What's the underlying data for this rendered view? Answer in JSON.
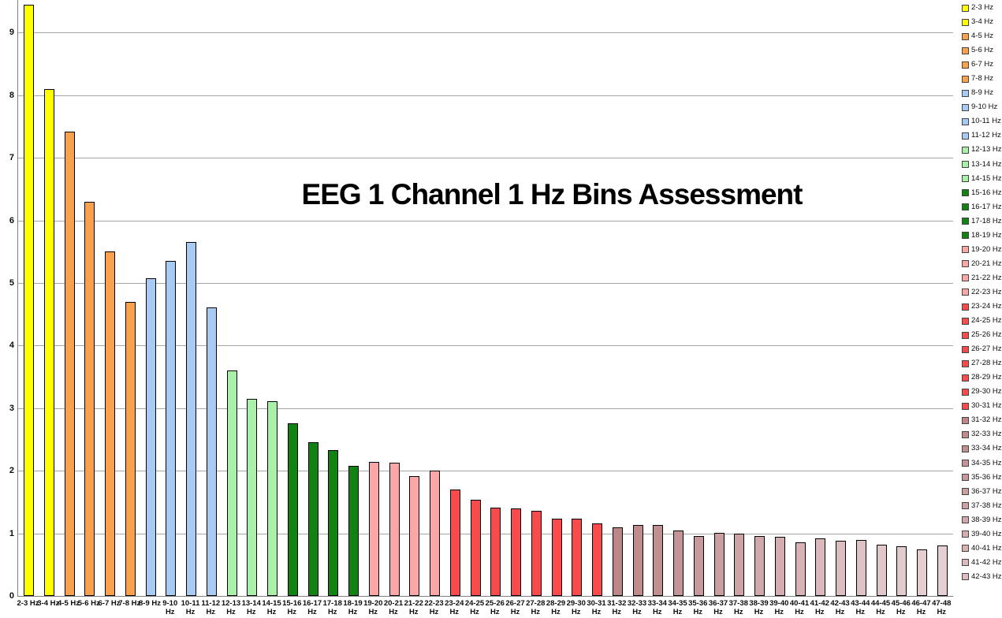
{
  "chart_data": {
    "type": "bar",
    "title": "EEG 1 Channel 1 Hz Bins Assessment",
    "xlabel": "",
    "ylabel": "",
    "ylim": [
      0,
      9.52
    ],
    "yticks": [
      0,
      1,
      2,
      3,
      4,
      5,
      6,
      7,
      8,
      9
    ],
    "grid": true,
    "legend_position": "right",
    "categories": [
      "2-3 Hz",
      "3-4 Hz",
      "4-5 Hz",
      "5-6 Hz",
      "6-7 Hz",
      "7-8 Hz",
      "8-9 Hz",
      "9-10 Hz",
      "10-11 Hz",
      "11-12 Hz",
      "12-13 Hz",
      "13-14 Hz",
      "14-15 Hz",
      "15-16 Hz",
      "16-17 Hz",
      "17-18 Hz",
      "18-19 Hz",
      "19-20 Hz",
      "20-21 Hz",
      "21-22 Hz",
      "22-23 Hz",
      "23-24 Hz",
      "24-25 Hz",
      "25-26 Hz",
      "26-27 Hz",
      "27-28 Hz",
      "28-29 Hz",
      "29-30 Hz",
      "30-31 Hz",
      "31-32 Hz",
      "32-33 Hz",
      "33-34 Hz",
      "34-35 Hz",
      "35-36 Hz",
      "36-37 Hz",
      "37-38 Hz",
      "38-39 Hz",
      "39-40 Hz",
      "40-41 Hz",
      "41-42 Hz",
      "42-43 Hz",
      "43-44 Hz",
      "44-45 Hz",
      "45-46 Hz",
      "46-47 Hz",
      "47-48 Hz"
    ],
    "values": [
      9.44,
      8.1,
      7.42,
      6.3,
      5.5,
      4.7,
      5.08,
      5.35,
      5.66,
      4.61,
      3.6,
      3.15,
      3.11,
      2.76,
      2.45,
      2.33,
      2.08,
      2.14,
      2.13,
      1.91,
      2.0,
      1.7,
      1.54,
      1.41,
      1.4,
      1.36,
      1.24,
      1.24,
      1.16,
      1.09,
      1.13,
      1.13,
      1.05,
      0.96,
      1.01,
      0.99,
      0.96,
      0.94,
      0.86,
      0.92,
      0.88,
      0.9,
      0.82,
      0.79,
      0.74,
      0.81
    ],
    "colors": [
      "#FFFF00",
      "#FFFF00",
      "#F9A14D",
      "#F9A14D",
      "#F9A14D",
      "#F9A14D",
      "#A7CBF2",
      "#A7CBF2",
      "#A7CBF2",
      "#A7CBF2",
      "#A9F1A9",
      "#A9F1A9",
      "#A9F1A9",
      "#128312",
      "#128312",
      "#128312",
      "#128312",
      "#FBA7A7",
      "#FBA7A7",
      "#FBA7A7",
      "#FBA7A7",
      "#F94B4B",
      "#F94B4B",
      "#F94B4B",
      "#F94B4B",
      "#F94B4B",
      "#F94B4B",
      "#F94B4B",
      "#F94B4B",
      "#BD8789",
      "#C08B8D",
      "#C28F91",
      "#C59497",
      "#C8999C",
      "#CB9EA1",
      "#CEA3A6",
      "#D1A8AB",
      "#D4ADB0",
      "#D7B3B6",
      "#DAB8BB",
      "#DCBDC0",
      "#DFC2C5",
      "#E1C6C9",
      "#E3CACD",
      "#E5CDD0",
      "#E6CFD2"
    ],
    "legend_entries": [
      "2-3 Hz",
      "3-4 Hz",
      "4-5 Hz",
      "5-6 Hz",
      "6-7 Hz",
      "7-8 Hz",
      "8-9 Hz",
      "9-10 Hz",
      "10-11 Hz",
      "11-12 Hz",
      "12-13 Hz",
      "13-14 Hz",
      "14-15 Hz",
      "15-16 Hz",
      "16-17 Hz",
      "17-18 Hz",
      "18-19 Hz",
      "19-20 Hz",
      "20-21 Hz",
      "21-22 Hz",
      "22-23 Hz",
      "23-24 Hz",
      "24-25 Hz",
      "25-26 Hz",
      "26-27 Hz",
      "27-28 Hz",
      "28-29 Hz",
      "29-30 Hz",
      "30-31 Hz",
      "31-32 Hz",
      "32-33 Hz",
      "33-34 Hz",
      "34-35 Hz",
      "35-36 Hz",
      "36-37 Hz",
      "37-38 Hz",
      "38-39 Hz",
      "39-40 Hz",
      "40-41 Hz",
      "41-42 Hz",
      "42-43 Hz"
    ]
  },
  "style_colors": {
    "background": "#FFFFFF",
    "gridline": "#A6A6A6",
    "axis": "#808080",
    "bar_border": "#000000",
    "text": "#0D0D0D"
  }
}
